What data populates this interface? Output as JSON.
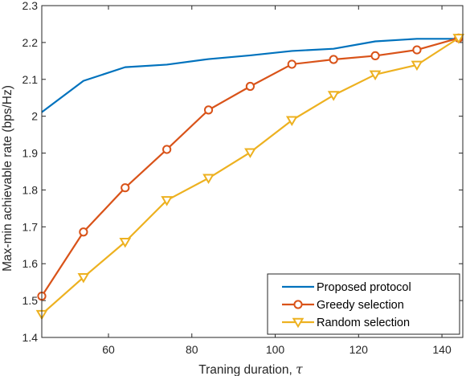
{
  "chart_data": {
    "type": "line",
    "xlabel": "Traning duration, ",
    "xlabel_symbol": "τ",
    "ylabel": "Max-min achievable rate (bps/Hz)",
    "xlim": [
      44,
      145
    ],
    "ylim": [
      1.4,
      2.3
    ],
    "xticks": [
      60,
      80,
      100,
      120,
      140
    ],
    "xtick_labels": [
      "60",
      "80",
      "100",
      "120",
      "140"
    ],
    "yticks": [
      1.4,
      1.5,
      1.6,
      1.7,
      1.8,
      1.9,
      2.0,
      2.1,
      2.2,
      2.3
    ],
    "ytick_labels": [
      "1.4",
      "1.5",
      "1.6",
      "1.7",
      "1.8",
      "1.9",
      "2",
      "2.1",
      "2.2",
      "2.3"
    ],
    "grid": false,
    "legend_position": "bottom-right",
    "series": [
      {
        "name": "Proposed protocol",
        "color": "#0072BD",
        "marker": "none",
        "x": [
          44,
          54,
          64,
          74,
          84,
          94,
          104,
          114,
          124,
          134,
          144
        ],
        "y": [
          2.011,
          2.096,
          2.133,
          2.14,
          2.155,
          2.165,
          2.177,
          2.183,
          2.203,
          2.21,
          2.21
        ]
      },
      {
        "name": "Greedy selection",
        "color": "#D95319",
        "marker": "circle",
        "x": [
          44,
          54,
          64,
          74,
          84,
          94,
          104,
          114,
          124,
          134,
          144
        ],
        "y": [
          1.512,
          1.686,
          1.806,
          1.91,
          2.017,
          2.081,
          2.141,
          2.154,
          2.164,
          2.18,
          2.212
        ]
      },
      {
        "name": "Random selection",
        "color": "#EDB120",
        "marker": "triangle-down",
        "x": [
          44,
          54,
          64,
          74,
          84,
          94,
          104,
          114,
          124,
          134,
          144
        ],
        "y": [
          1.463,
          1.563,
          1.659,
          1.772,
          1.832,
          1.902,
          1.989,
          2.057,
          2.113,
          2.139,
          2.212
        ]
      }
    ]
  }
}
